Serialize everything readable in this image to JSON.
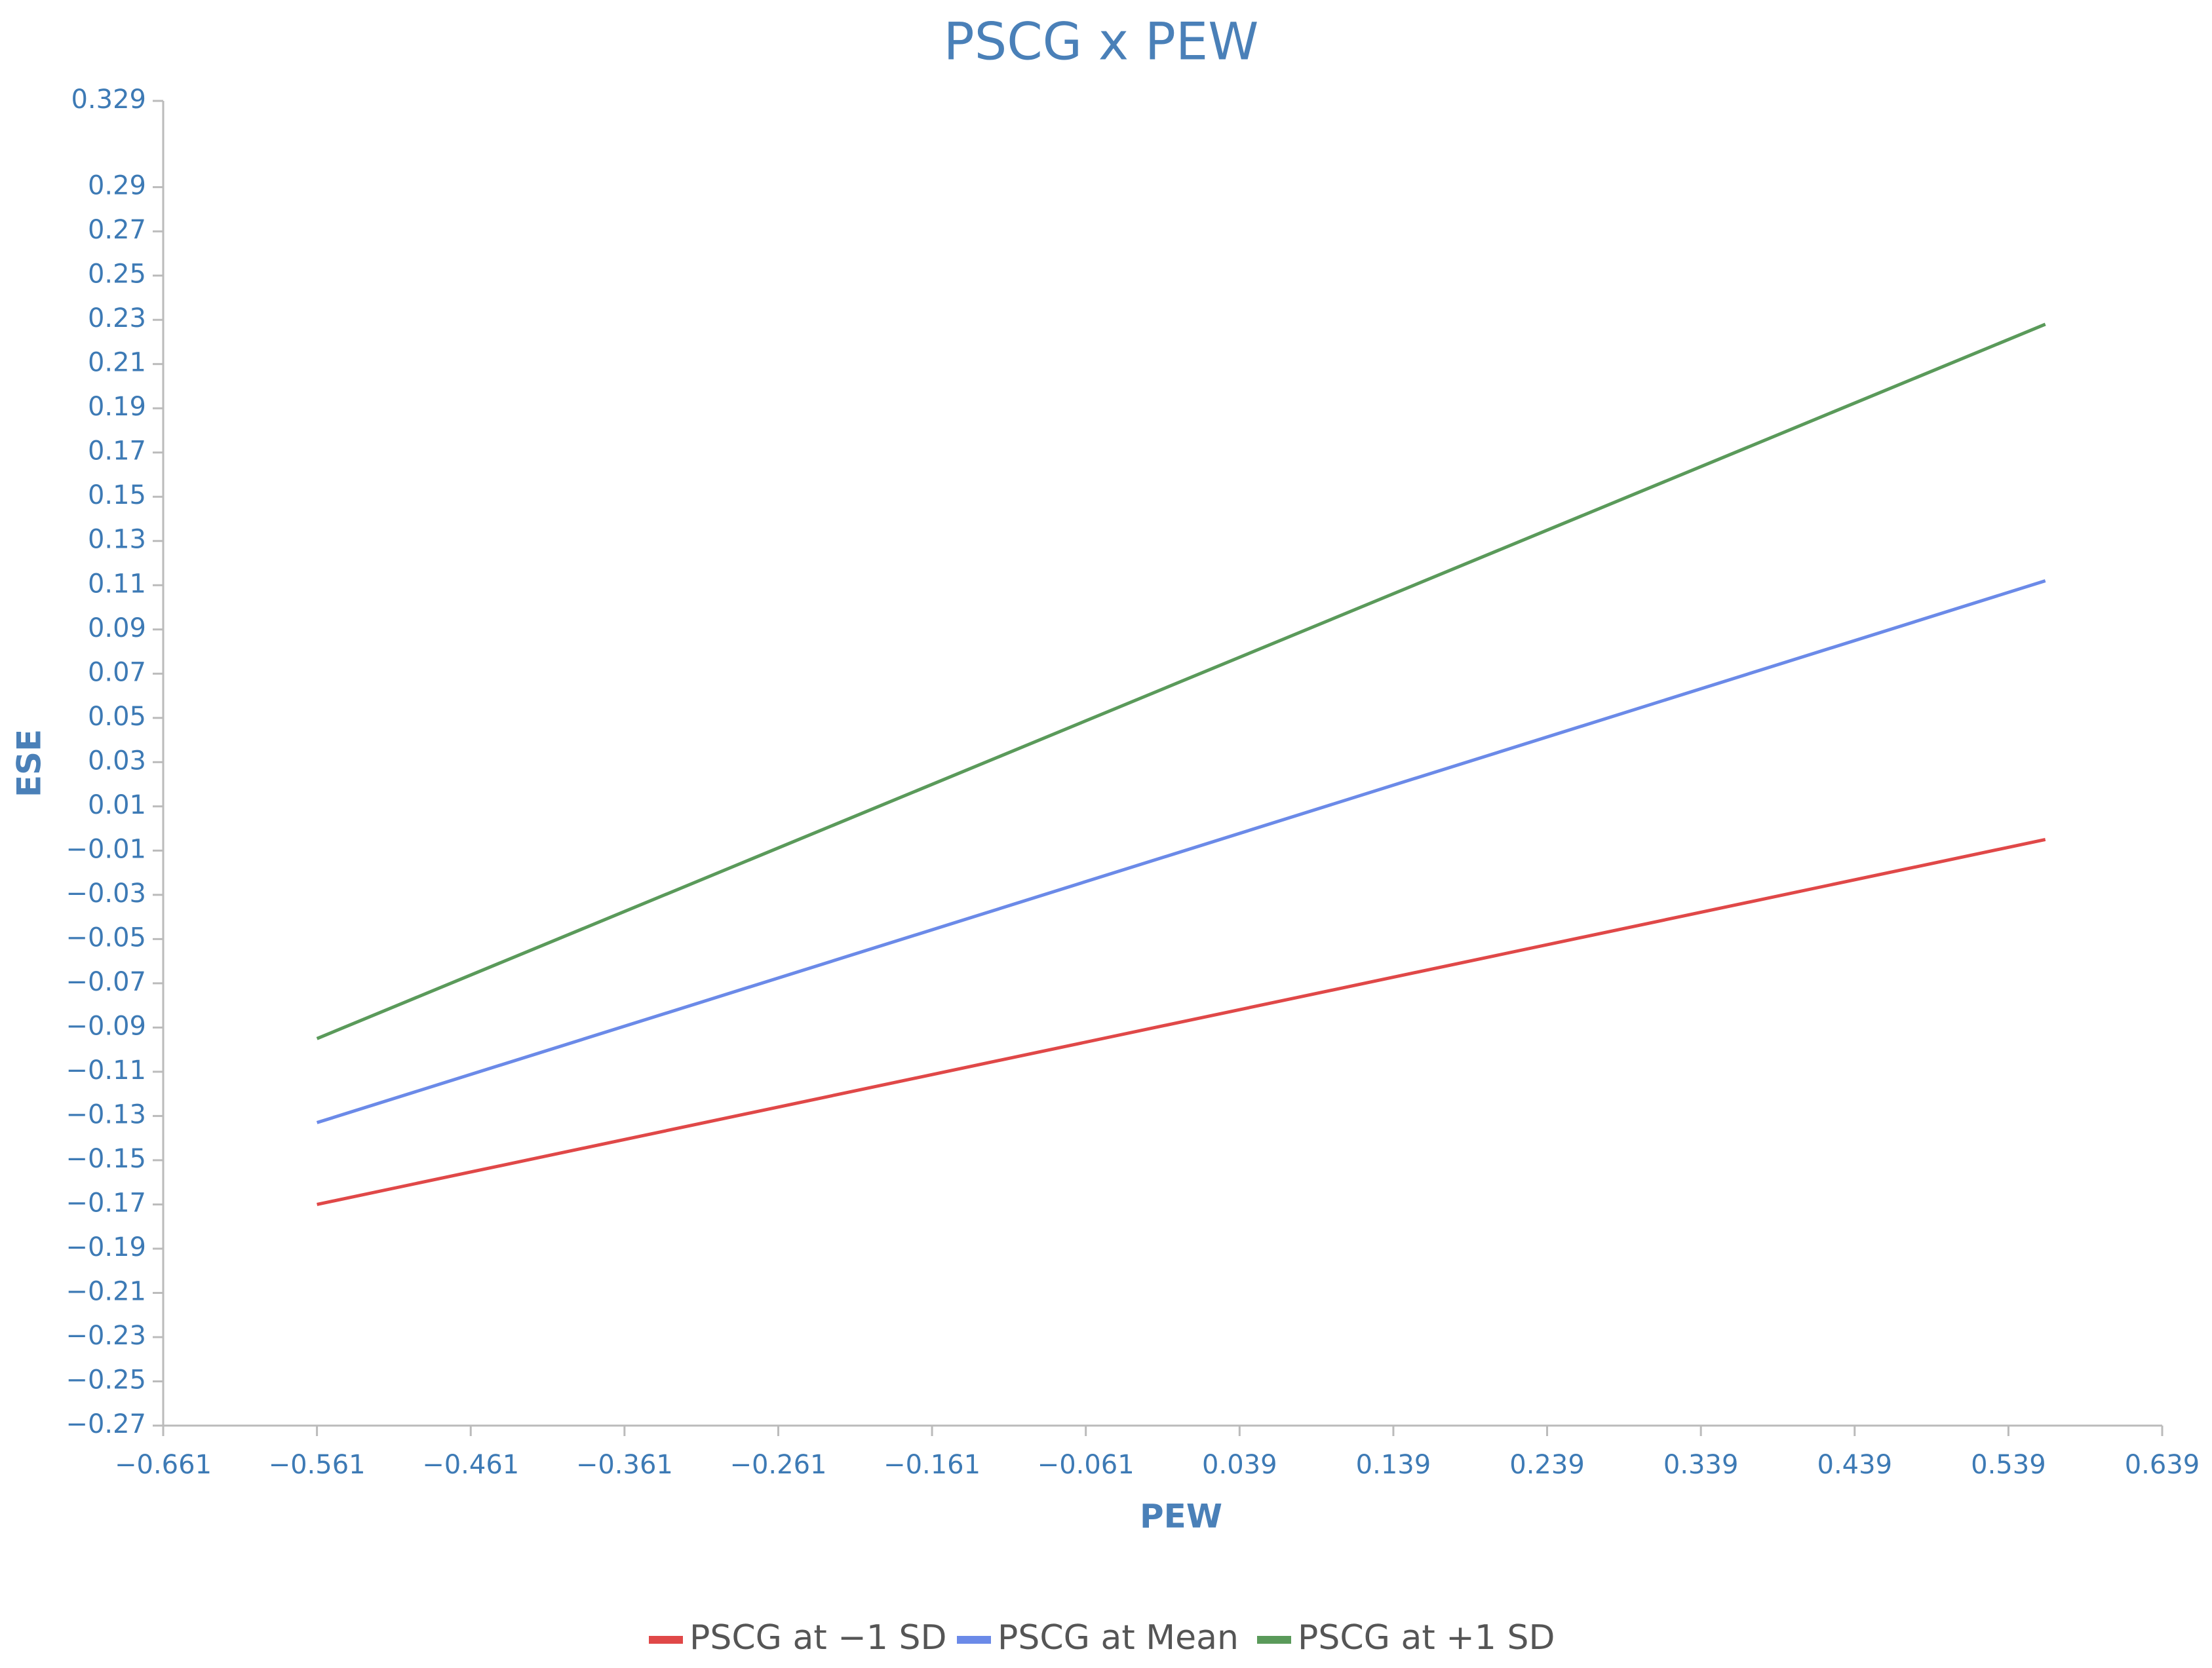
{
  "chart_data": {
    "type": "line",
    "title": "PSCG x PEW",
    "x_label": "PEW",
    "y_label": "ESE",
    "x": [
      -0.561,
      0.563
    ],
    "series": [
      {
        "name": "PSCG at −1 SD",
        "color": "#e04848",
        "values": [
          -0.17,
          -0.005
        ]
      },
      {
        "name": "PSCG at Mean",
        "color": "#6b8ae8",
        "values": [
          -0.133,
          0.112
        ]
      },
      {
        "name": "PSCG at +1 SD",
        "color": "#5a9a5a",
        "values": [
          -0.095,
          0.228
        ]
      }
    ],
    "xlim": [
      -0.661,
      0.639
    ],
    "xticks": [
      {
        "value": -0.661,
        "label": "−0.661"
      },
      {
        "value": -0.561,
        "label": "−0.561"
      },
      {
        "value": -0.461,
        "label": "−0.461"
      },
      {
        "value": -0.361,
        "label": "−0.361"
      },
      {
        "value": -0.261,
        "label": "−0.261"
      },
      {
        "value": -0.161,
        "label": "−0.161"
      },
      {
        "value": -0.061,
        "label": "−0.061"
      },
      0.039,
      0.139,
      0.239,
      0.339,
      0.439,
      0.539,
      0.639
    ],
    "ylim": [
      -0.27,
      0.329
    ],
    "yticks": [
      0.329,
      0.29,
      0.27,
      0.25,
      0.23,
      0.21,
      0.19,
      0.17,
      0.15,
      0.13,
      0.11,
      0.09,
      0.07,
      0.05,
      0.03,
      0.01,
      {
        "value": -0.01,
        "label": "−0.01"
      },
      {
        "value": -0.03,
        "label": "−0.03"
      },
      {
        "value": -0.05,
        "label": "−0.05"
      },
      {
        "value": -0.07,
        "label": "−0.07"
      },
      {
        "value": -0.09,
        "label": "−0.09"
      },
      {
        "value": -0.11,
        "label": "−0.11"
      },
      {
        "value": -0.13,
        "label": "−0.13"
      },
      {
        "value": -0.15,
        "label": "−0.15"
      },
      {
        "value": -0.17,
        "label": "−0.17"
      },
      {
        "value": -0.19,
        "label": "−0.19"
      },
      {
        "value": -0.21,
        "label": "−0.21"
      },
      {
        "value": -0.23,
        "label": "−0.23"
      },
      {
        "value": -0.25,
        "label": "−0.25"
      },
      {
        "value": -0.27,
        "label": "−0.27"
      }
    ],
    "grid": false,
    "legend": "bottom"
  }
}
